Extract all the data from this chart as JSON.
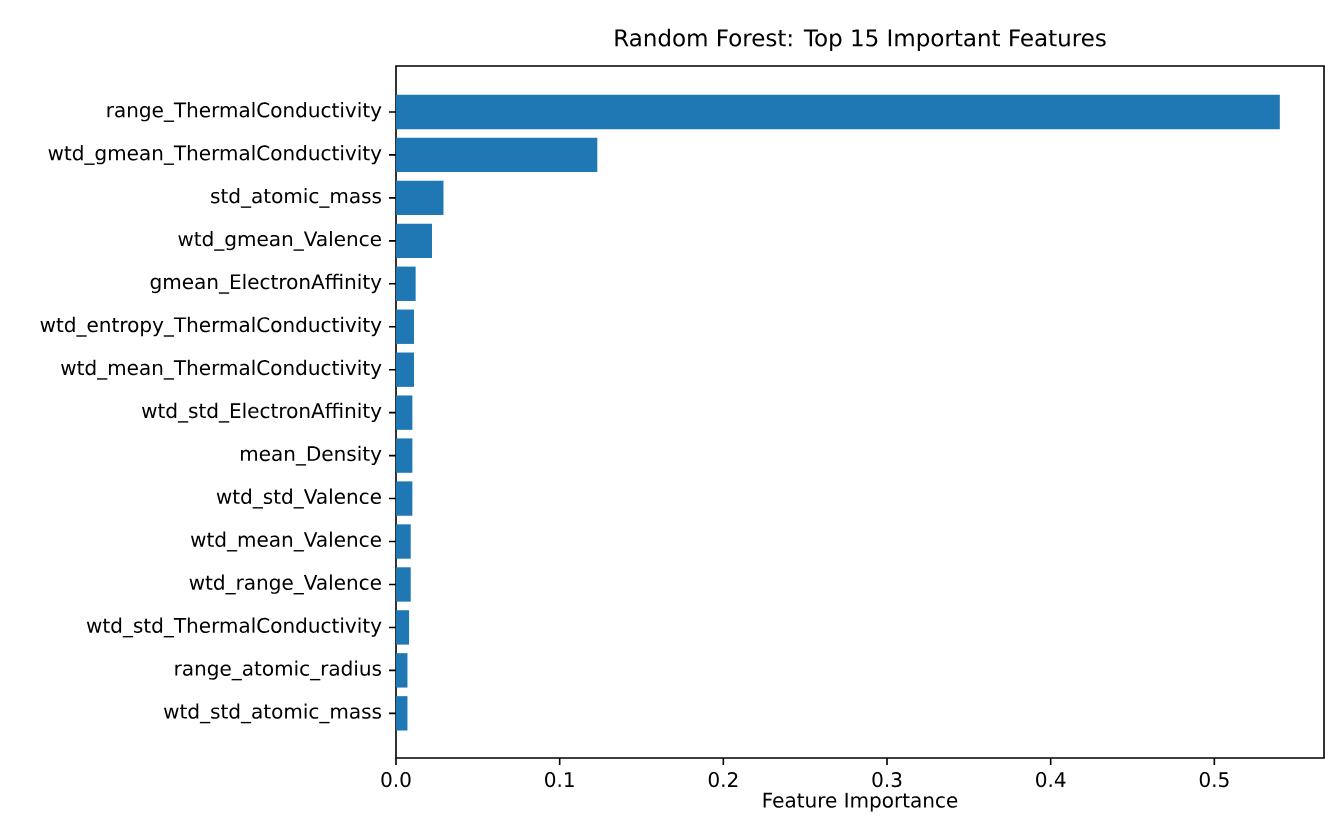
{
  "chart_data": {
    "type": "bar",
    "orientation": "horizontal",
    "title": "Random Forest: Top 15 Important Features",
    "xlabel": "Feature Importance",
    "categories": [
      "range_ThermalConductivity",
      "wtd_gmean_ThermalConductivity",
      "std_atomic_mass",
      "wtd_gmean_Valence",
      "gmean_ElectronAffinity",
      "wtd_entropy_ThermalConductivity",
      "wtd_mean_ThermalConductivity",
      "wtd_std_ElectronAffinity",
      "mean_Density",
      "wtd_std_Valence",
      "wtd_mean_Valence",
      "wtd_range_Valence",
      "wtd_std_ThermalConductivity",
      "range_atomic_radius",
      "wtd_std_atomic_mass"
    ],
    "values": [
      0.54,
      0.123,
      0.029,
      0.022,
      0.012,
      0.011,
      0.011,
      0.01,
      0.01,
      0.01,
      0.009,
      0.009,
      0.008,
      0.007,
      0.007
    ],
    "color": "#1f77b4",
    "xlim": [
      0,
      0.567
    ],
    "xticks": [
      {
        "value": 0,
        "label": "0.0"
      },
      {
        "value": 0.1,
        "label": "0.1"
      },
      {
        "value": 0.2,
        "label": "0.2"
      },
      {
        "value": 0.3,
        "label": "0.3"
      },
      {
        "value": 0.4,
        "label": "0.4"
      },
      {
        "value": 0.5,
        "label": "0.5"
      }
    ],
    "grid": false
  }
}
